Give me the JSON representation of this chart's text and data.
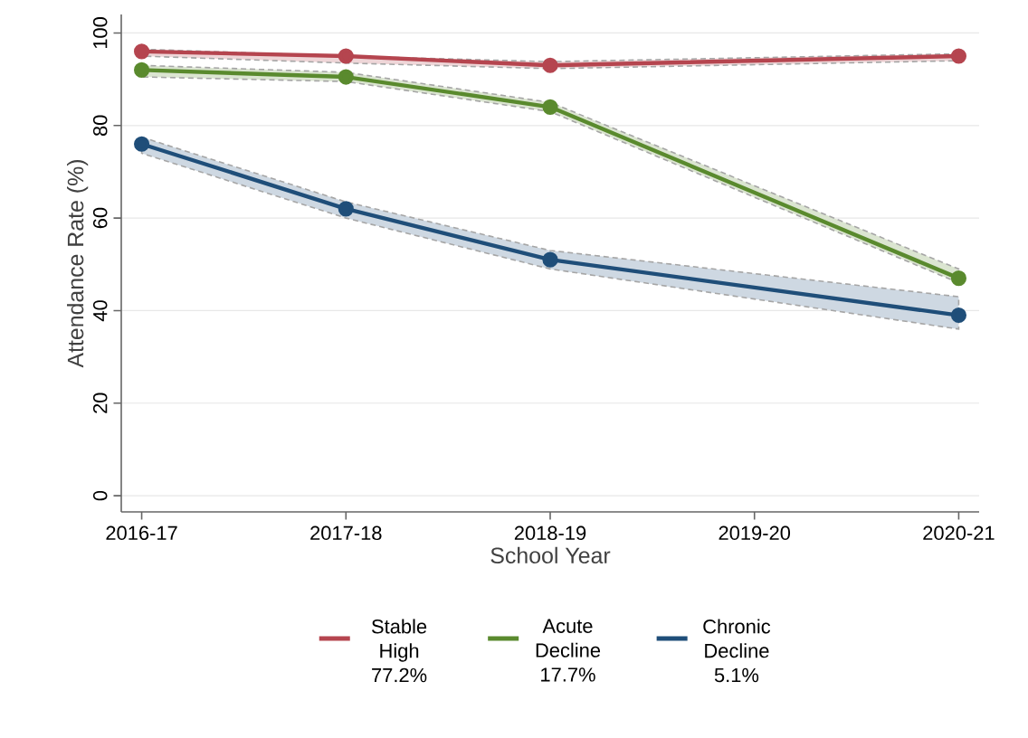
{
  "chart_data": {
    "type": "line",
    "xlabel": "School Year",
    "ylabel": "Attendance Rate (%)",
    "categories": [
      "2016-17",
      "2017-18",
      "2018-19",
      "2019-20",
      "2020-21"
    ],
    "series": [
      {
        "name": "Stable High 77.2%",
        "color": "#b5454f",
        "values": [
          96,
          95,
          93,
          null,
          95
        ],
        "lower": [
          95,
          93.5,
          92.3,
          null,
          94
        ],
        "upper": [
          96.5,
          95,
          93.8,
          null,
          95.5
        ]
      },
      {
        "name": "Acute Decline 17.7%",
        "color": "#5a8a2e",
        "values": [
          92,
          90.5,
          84,
          null,
          47
        ],
        "lower": [
          90.5,
          89.5,
          83,
          null,
          46
        ],
        "upper": [
          93,
          91.5,
          85,
          null,
          49
        ]
      },
      {
        "name": "Chronic Decline 5.1%",
        "color": "#1f4e79",
        "values": [
          76,
          62,
          51,
          null,
          39
        ],
        "lower": [
          74,
          60,
          49,
          null,
          36
        ],
        "upper": [
          77.5,
          63.5,
          53,
          null,
          43
        ]
      }
    ],
    "ylim": [
      -3.5,
      104
    ],
    "yticks": [
      0,
      20,
      40,
      60,
      80,
      100
    ],
    "grid": "y",
    "legend": "bottom",
    "marker": "circle",
    "line_style": "solid"
  }
}
